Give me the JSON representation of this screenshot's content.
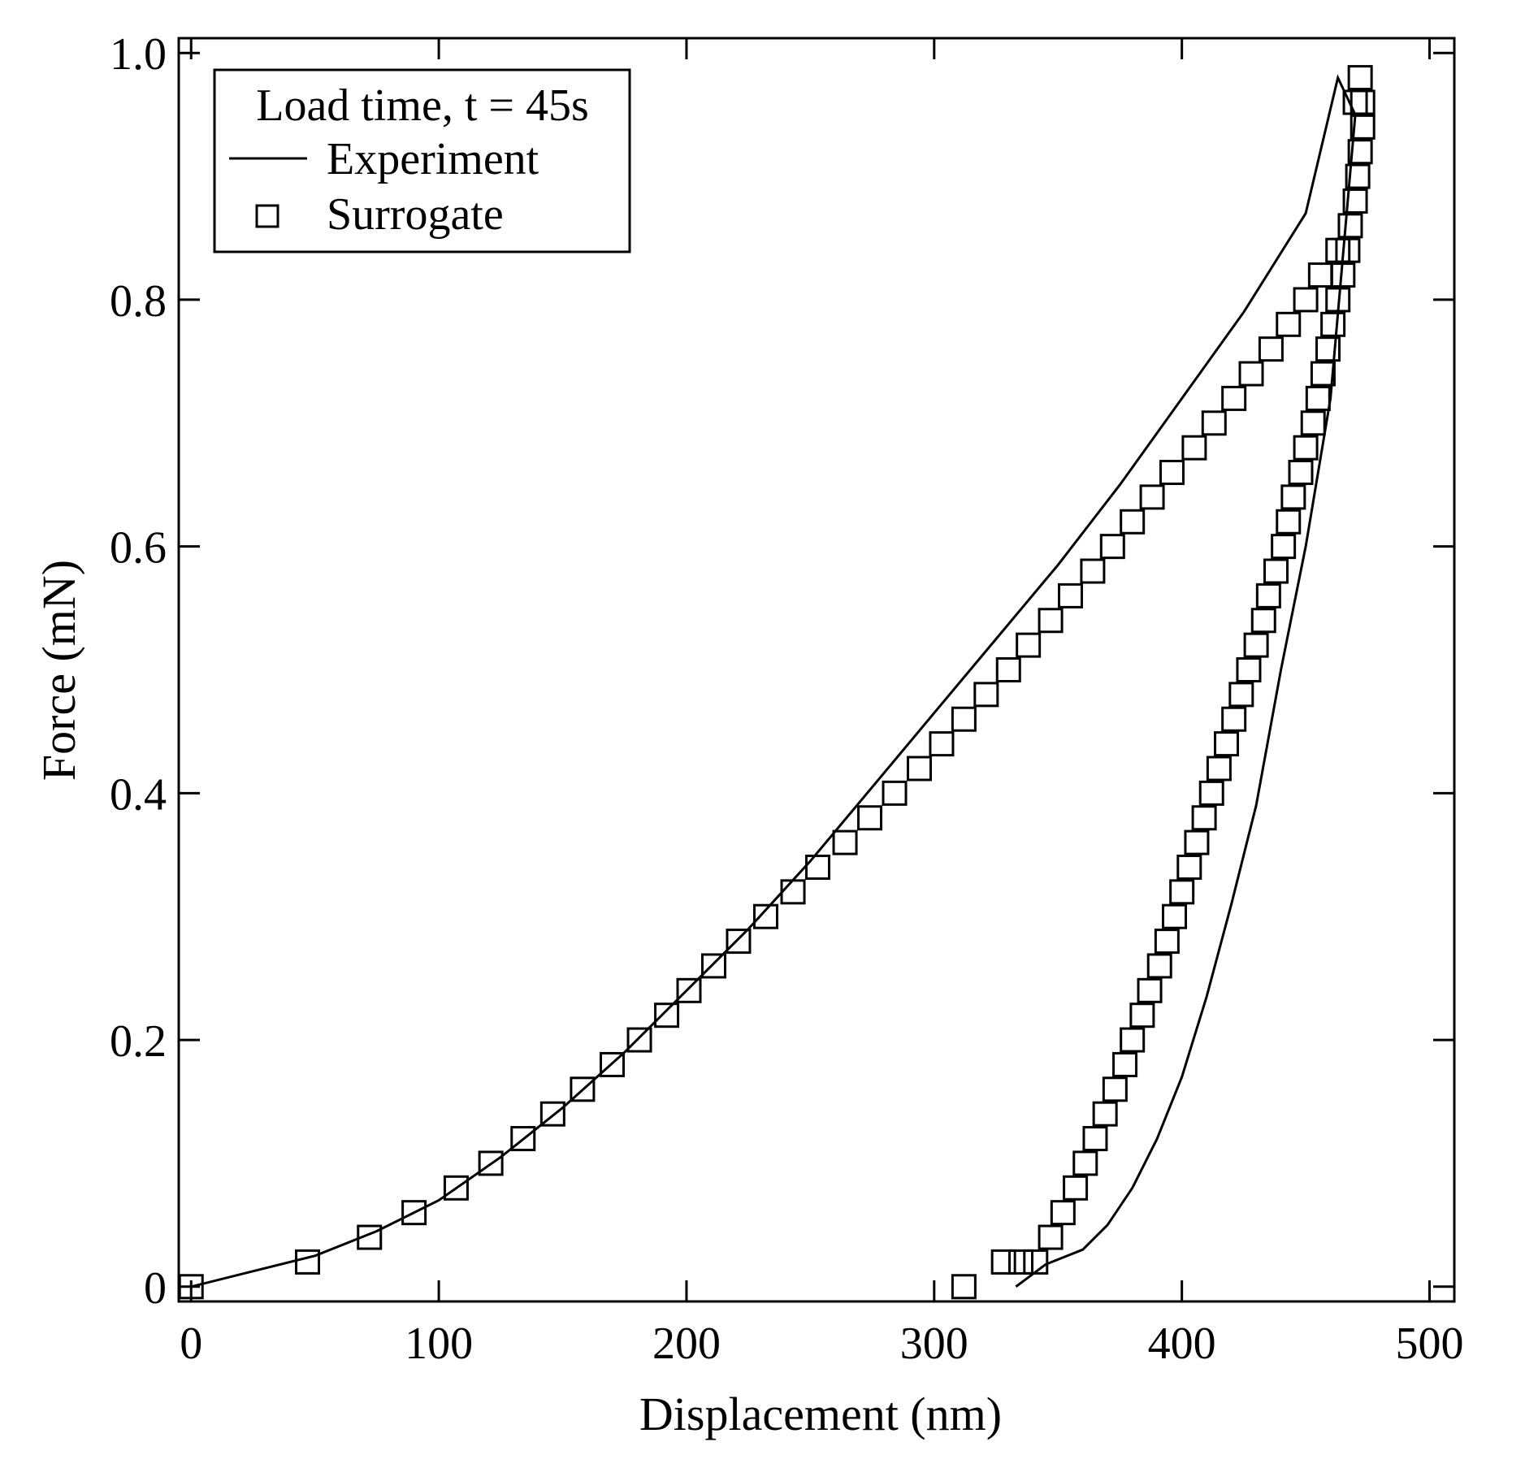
{
  "chart_data": {
    "type": "line",
    "title": "",
    "xlabel": "Displacement (nm)",
    "ylabel": "Force (mN)",
    "xlim": [
      -5,
      510
    ],
    "ylim": [
      -0.012,
      1.012
    ],
    "xticks": [
      0,
      100,
      200,
      300,
      400,
      500
    ],
    "xtick_labels": [
      "0",
      "100",
      "200",
      "300",
      "400",
      "500"
    ],
    "yticks": [
      0,
      0.2,
      0.4,
      0.6,
      0.8,
      1.0
    ],
    "ytick_labels": [
      "0",
      "0.2",
      "0.4",
      "0.6",
      "0.8",
      "1.0"
    ],
    "grid": false,
    "legend": {
      "position": "top-left",
      "title": "Load time, t = 45s",
      "entries": [
        "Experiment",
        "Surrogate"
      ]
    },
    "series": [
      {
        "name": "Experiment",
        "style": "line",
        "x": [
          0,
          20,
          50,
          75,
          100,
          125,
          150,
          175,
          200,
          225,
          250,
          275,
          300,
          325,
          350,
          375,
          400,
          425,
          450,
          463,
          470,
          460,
          450,
          440,
          430,
          420,
          410,
          400,
          390,
          380,
          370,
          360,
          345,
          333
        ],
        "y": [
          0,
          0.01,
          0.025,
          0.045,
          0.07,
          0.105,
          0.145,
          0.19,
          0.24,
          0.29,
          0.345,
          0.405,
          0.465,
          0.525,
          0.585,
          0.65,
          0.72,
          0.79,
          0.87,
          0.98,
          0.95,
          0.72,
          0.6,
          0.5,
          0.39,
          0.31,
          0.235,
          0.17,
          0.12,
          0.08,
          0.05,
          0.03,
          0.018,
          0
        ]
      },
      {
        "name": "Surrogate",
        "style": "square-markers",
        "x": [
          0,
          47,
          72,
          90,
          107,
          121,
          134,
          146,
          158,
          170,
          181,
          192,
          201,
          211,
          221,
          232,
          243,
          253,
          264,
          274,
          284,
          294,
          303,
          312,
          321,
          330,
          338,
          347,
          355,
          364,
          372,
          380,
          388,
          396,
          405,
          413,
          421,
          428,
          436,
          443,
          450,
          456,
          463,
          470,
          472,
          473,
          473,
          472,
          471,
          470,
          468,
          467,
          465,
          463,
          461,
          459,
          457,
          455,
          453,
          450,
          448,
          445,
          443,
          441,
          438,
          435,
          433,
          430,
          427,
          424,
          421,
          418,
          415,
          412,
          409,
          406,
          403,
          400,
          397,
          394,
          391,
          387,
          384,
          380,
          377,
          373,
          369,
          365,
          361,
          357,
          352,
          347,
          341,
          335,
          328,
          312
        ],
        "y": [
          0,
          0.02,
          0.04,
          0.06,
          0.08,
          0.1,
          0.12,
          0.14,
          0.16,
          0.18,
          0.2,
          0.22,
          0.24,
          0.26,
          0.28,
          0.3,
          0.32,
          0.34,
          0.36,
          0.38,
          0.4,
          0.42,
          0.44,
          0.46,
          0.48,
          0.5,
          0.52,
          0.54,
          0.56,
          0.58,
          0.6,
          0.62,
          0.64,
          0.66,
          0.68,
          0.7,
          0.72,
          0.74,
          0.76,
          0.78,
          0.8,
          0.82,
          0.84,
          0.96,
          0.98,
          0.96,
          0.94,
          0.92,
          0.9,
          0.88,
          0.86,
          0.84,
          0.82,
          0.8,
          0.78,
          0.76,
          0.74,
          0.72,
          0.7,
          0.68,
          0.66,
          0.64,
          0.62,
          0.6,
          0.58,
          0.56,
          0.54,
          0.52,
          0.5,
          0.48,
          0.46,
          0.44,
          0.42,
          0.4,
          0.38,
          0.36,
          0.34,
          0.32,
          0.3,
          0.28,
          0.26,
          0.24,
          0.22,
          0.2,
          0.18,
          0.16,
          0.14,
          0.12,
          0.1,
          0.08,
          0.06,
          0.04,
          0.02,
          0.02,
          0.02,
          0
        ]
      }
    ]
  }
}
